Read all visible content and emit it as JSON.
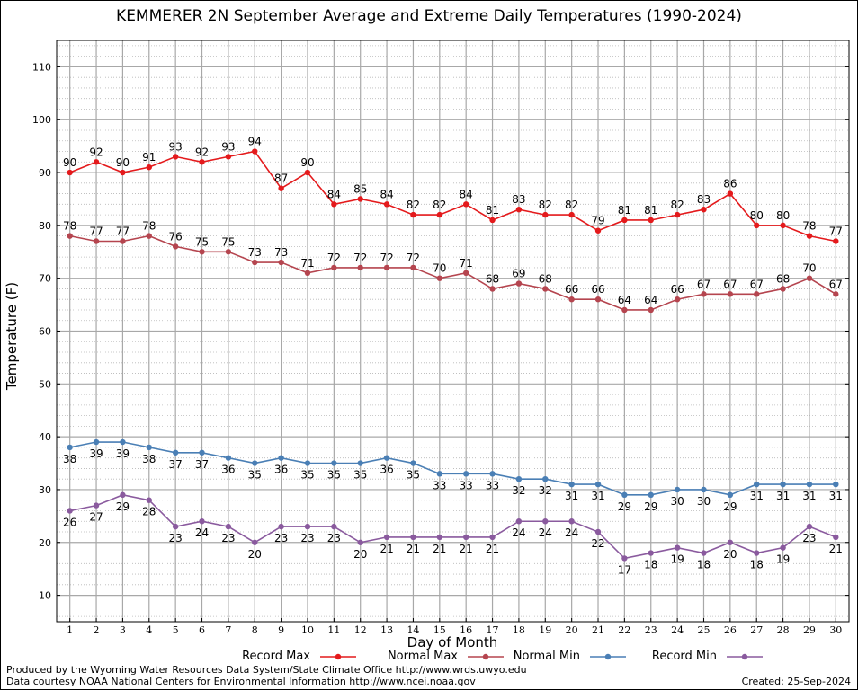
{
  "chart_data": {
    "type": "line",
    "title": "KEMMERER 2N September Average and Extreme Daily Temperatures (1990-2024)",
    "xlabel": "Day of Month",
    "ylabel": "Temperature (F)",
    "x": [
      1,
      2,
      3,
      4,
      5,
      6,
      7,
      8,
      9,
      10,
      11,
      12,
      13,
      14,
      15,
      16,
      17,
      18,
      19,
      20,
      21,
      22,
      23,
      24,
      25,
      26,
      27,
      28,
      29,
      30
    ],
    "xlim": [
      0.5,
      30.5
    ],
    "ylim": [
      5,
      115
    ],
    "yticks": [
      10,
      20,
      30,
      40,
      50,
      60,
      70,
      80,
      90,
      100,
      110
    ],
    "grid": true,
    "legend_position": "bottom",
    "series": [
      {
        "name": "Record Max",
        "color": "#e41a1c",
        "label_position": "above",
        "values": [
          90,
          92,
          90,
          91,
          93,
          92,
          93,
          94,
          87,
          90,
          84,
          85,
          84,
          82,
          82,
          84,
          81,
          83,
          82,
          82,
          79,
          81,
          81,
          82,
          83,
          86,
          80,
          80,
          78,
          77
        ]
      },
      {
        "name": "Normal Max",
        "color": "#b5454f",
        "label_position": "above",
        "values": [
          78,
          77,
          77,
          78,
          76,
          75,
          75,
          73,
          73,
          71,
          72,
          72,
          72,
          72,
          70,
          71,
          68,
          69,
          68,
          66,
          66,
          64,
          64,
          66,
          67,
          67,
          67,
          68,
          70,
          67
        ]
      },
      {
        "name": "Normal Min",
        "color": "#4a7fb5",
        "label_position": "below",
        "values": [
          38,
          39,
          39,
          38,
          37,
          37,
          36,
          35,
          36,
          35,
          35,
          35,
          36,
          35,
          33,
          33,
          33,
          32,
          32,
          31,
          31,
          29,
          29,
          30,
          30,
          29,
          31,
          31,
          31,
          31
        ]
      },
      {
        "name": "Record Min",
        "color": "#8a5a9e",
        "label_position": "below",
        "values": [
          26,
          27,
          29,
          28,
          23,
          24,
          23,
          20,
          23,
          23,
          23,
          20,
          21,
          21,
          21,
          21,
          21,
          24,
          24,
          24,
          22,
          17,
          18,
          19,
          18,
          20,
          18,
          19,
          23,
          21
        ]
      }
    ]
  },
  "footer": {
    "credit1": "Produced by the Wyoming Water Resources Data System/State Climate Office http://www.wrds.uwyo.edu",
    "credit2": "Data courtesy NOAA National Centers for Environmental Information http://www.ncei.noaa.gov",
    "created": "Created:  25-Sep-2024"
  }
}
